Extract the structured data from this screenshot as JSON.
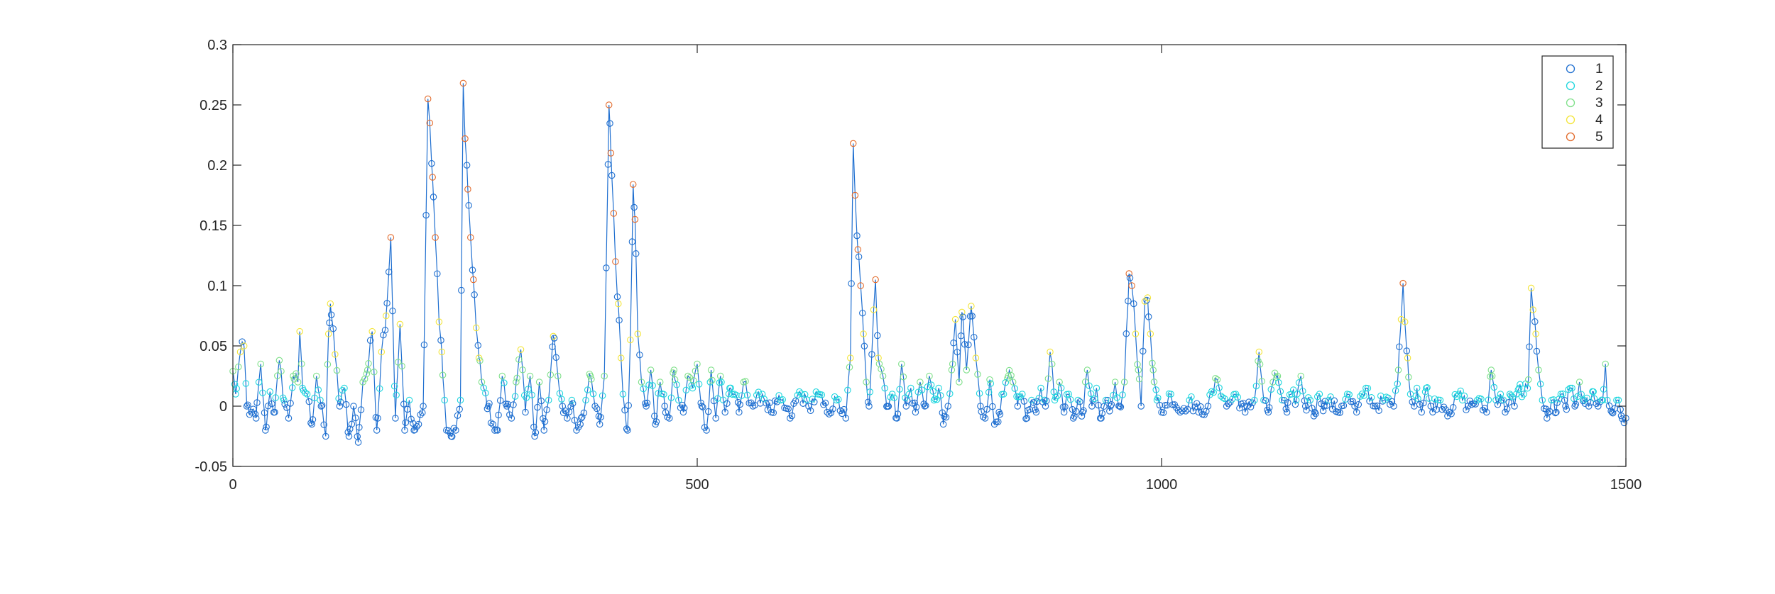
{
  "chart_data": {
    "type": "scatter",
    "title": "",
    "xlabel": "",
    "ylabel": "",
    "xlim": [
      0,
      1500
    ],
    "ylim": [
      -0.05,
      0.3
    ],
    "x_ticks": [
      0,
      500,
      1000,
      1500
    ],
    "x_tick_labels": [
      "0",
      "500",
      "1000",
      "1500"
    ],
    "y_ticks": [
      -0.05,
      0,
      0.05,
      0.1,
      0.15,
      0.2,
      0.25,
      0.3
    ],
    "y_tick_labels": [
      "-0.05",
      "0",
      "0.05",
      "0.1",
      "0.15",
      "0.2",
      "0.25",
      "0.3"
    ],
    "grid": false,
    "legend_position": "top-right",
    "line_color": "#1f6fd0",
    "series": [
      {
        "name": "1",
        "color": "#1f6fd0"
      },
      {
        "name": "2",
        "color": "#1fd6de"
      },
      {
        "name": "3",
        "color": "#7fe08a"
      },
      {
        "name": "4",
        "color": "#f3e53a"
      },
      {
        "name": "5",
        "color": "#e26a2b"
      }
    ],
    "anchor_points": [
      [
        0,
        0.029
      ],
      [
        3,
        0.01
      ],
      [
        8,
        0.045
      ],
      [
        12,
        0.05
      ],
      [
        15,
        0.0
      ],
      [
        20,
        -0.005
      ],
      [
        25,
        -0.01
      ],
      [
        30,
        0.035
      ],
      [
        35,
        -0.02
      ],
      [
        40,
        0.012
      ],
      [
        45,
        -0.005
      ],
      [
        50,
        0.038
      ],
      [
        55,
        0.005
      ],
      [
        60,
        -0.01
      ],
      [
        65,
        0.025
      ],
      [
        70,
        0.02
      ],
      [
        72,
        0.062
      ],
      [
        75,
        0.015
      ],
      [
        80,
        0.01
      ],
      [
        85,
        -0.015
      ],
      [
        90,
        0.025
      ],
      [
        95,
        0.0
      ],
      [
        100,
        -0.025
      ],
      [
        103,
        0.06
      ],
      [
        105,
        0.085
      ],
      [
        110,
        0.043
      ],
      [
        115,
        0.0
      ],
      [
        120,
        0.015
      ],
      [
        125,
        -0.025
      ],
      [
        130,
        0.0
      ],
      [
        135,
        -0.03
      ],
      [
        140,
        0.02
      ],
      [
        145,
        0.03
      ],
      [
        150,
        0.062
      ],
      [
        155,
        -0.02
      ],
      [
        160,
        0.045
      ],
      [
        165,
        0.075
      ],
      [
        170,
        0.14
      ],
      [
        175,
        -0.01
      ],
      [
        180,
        0.068
      ],
      [
        185,
        -0.02
      ],
      [
        190,
        0.005
      ],
      [
        195,
        -0.02
      ],
      [
        200,
        -0.015
      ],
      [
        205,
        0.0
      ],
      [
        210,
        0.255
      ],
      [
        212,
        0.235
      ],
      [
        215,
        0.19
      ],
      [
        218,
        0.14
      ],
      [
        222,
        0.07
      ],
      [
        225,
        0.045
      ],
      [
        228,
        0.005
      ],
      [
        230,
        -0.02
      ],
      [
        235,
        -0.025
      ],
      [
        240,
        -0.02
      ],
      [
        245,
        0.005
      ],
      [
        248,
        0.268
      ],
      [
        250,
        0.222
      ],
      [
        253,
        0.18
      ],
      [
        256,
        0.14
      ],
      [
        259,
        0.105
      ],
      [
        262,
        0.065
      ],
      [
        265,
        0.04
      ],
      [
        268,
        0.02
      ],
      [
        275,
        0.0
      ],
      [
        280,
        -0.015
      ],
      [
        285,
        -0.02
      ],
      [
        290,
        0.025
      ],
      [
        295,
        0.0
      ],
      [
        300,
        -0.01
      ],
      [
        305,
        0.02
      ],
      [
        310,
        0.047
      ],
      [
        315,
        -0.005
      ],
      [
        320,
        0.025
      ],
      [
        325,
        -0.025
      ],
      [
        330,
        0.02
      ],
      [
        335,
        -0.02
      ],
      [
        340,
        0.005
      ],
      [
        345,
        0.058
      ],
      [
        350,
        0.025
      ],
      [
        355,
        0.0
      ],
      [
        360,
        -0.01
      ],
      [
        365,
        0.005
      ],
      [
        370,
        -0.02
      ],
      [
        375,
        -0.01
      ],
      [
        380,
        0.005
      ],
      [
        385,
        0.025
      ],
      [
        390,
        0.0
      ],
      [
        395,
        -0.015
      ],
      [
        400,
        0.025
      ],
      [
        405,
        0.25
      ],
      [
        407,
        0.21
      ],
      [
        410,
        0.16
      ],
      [
        412,
        0.12
      ],
      [
        415,
        0.085
      ],
      [
        418,
        0.04
      ],
      [
        420,
        0.01
      ],
      [
        425,
        -0.02
      ],
      [
        428,
        0.055
      ],
      [
        431,
        0.184
      ],
      [
        433,
        0.155
      ],
      [
        436,
        0.06
      ],
      [
        440,
        0.02
      ],
      [
        445,
        0.0
      ],
      [
        450,
        0.03
      ],
      [
        455,
        -0.015
      ],
      [
        460,
        0.02
      ],
      [
        465,
        0.0
      ],
      [
        470,
        -0.01
      ],
      [
        475,
        0.03
      ],
      [
        480,
        0.005
      ],
      [
        485,
        -0.005
      ],
      [
        490,
        0.025
      ],
      [
        495,
        0.015
      ],
      [
        500,
        0.035
      ],
      [
        505,
        0.0
      ],
      [
        510,
        -0.02
      ],
      [
        515,
        0.03
      ],
      [
        520,
        -0.01
      ],
      [
        525,
        0.025
      ],
      [
        530,
        -0.005
      ],
      [
        535,
        0.015
      ],
      [
        540,
        0.01
      ],
      [
        545,
        -0.005
      ],
      [
        550,
        0.02
      ],
      [
        560,
        0.0
      ],
      [
        570,
        0.01
      ],
      [
        580,
        -0.005
      ],
      [
        590,
        0.005
      ],
      [
        600,
        -0.01
      ],
      [
        610,
        0.012
      ],
      [
        620,
        0.0
      ],
      [
        630,
        0.01
      ],
      [
        640,
        -0.005
      ],
      [
        650,
        0.005
      ],
      [
        660,
        -0.01
      ],
      [
        665,
        0.04
      ],
      [
        668,
        0.218
      ],
      [
        670,
        0.175
      ],
      [
        673,
        0.13
      ],
      [
        676,
        0.1
      ],
      [
        679,
        0.06
      ],
      [
        682,
        0.02
      ],
      [
        685,
        0.0
      ],
      [
        690,
        0.08
      ],
      [
        692,
        0.105
      ],
      [
        695,
        0.04
      ],
      [
        700,
        0.025
      ],
      [
        705,
        0.0
      ],
      [
        710,
        0.01
      ],
      [
        715,
        -0.01
      ],
      [
        720,
        0.035
      ],
      [
        725,
        0.0
      ],
      [
        730,
        0.015
      ],
      [
        735,
        -0.005
      ],
      [
        740,
        0.02
      ],
      [
        745,
        0.0
      ],
      [
        750,
        0.025
      ],
      [
        755,
        0.005
      ],
      [
        760,
        0.015
      ],
      [
        765,
        -0.015
      ],
      [
        770,
        0.0
      ],
      [
        775,
        0.035
      ],
      [
        778,
        0.072
      ],
      [
        782,
        0.02
      ],
      [
        785,
        0.078
      ],
      [
        790,
        0.03
      ],
      [
        795,
        0.083
      ],
      [
        800,
        0.04
      ],
      [
        805,
        0.0
      ],
      [
        810,
        -0.01
      ],
      [
        815,
        0.022
      ],
      [
        820,
        -0.015
      ],
      [
        825,
        -0.005
      ],
      [
        830,
        0.01
      ],
      [
        835,
        0.025
      ],
      [
        840,
        0.02
      ],
      [
        845,
        0.0
      ],
      [
        850,
        0.01
      ],
      [
        855,
        -0.01
      ],
      [
        860,
        0.005
      ],
      [
        865,
        -0.005
      ],
      [
        870,
        0.015
      ],
      [
        875,
        0.0
      ],
      [
        880,
        0.045
      ],
      [
        885,
        0.005
      ],
      [
        890,
        0.02
      ],
      [
        895,
        -0.005
      ],
      [
        900,
        0.01
      ],
      [
        905,
        -0.01
      ],
      [
        910,
        0.005
      ],
      [
        915,
        -0.005
      ],
      [
        920,
        0.03
      ],
      [
        925,
        0.0
      ],
      [
        930,
        0.015
      ],
      [
        935,
        -0.01
      ],
      [
        940,
        0.005
      ],
      [
        945,
        0.0
      ],
      [
        950,
        0.02
      ],
      [
        955,
        0.0
      ],
      [
        960,
        0.02
      ],
      [
        965,
        0.11
      ],
      [
        968,
        0.1
      ],
      [
        972,
        0.06
      ],
      [
        975,
        0.03
      ],
      [
        978,
        0.0
      ],
      [
        982,
        0.087
      ],
      [
        985,
        0.09
      ],
      [
        988,
        0.06
      ],
      [
        991,
        0.03
      ],
      [
        995,
        0.005
      ],
      [
        1000,
        -0.005
      ],
      [
        1010,
        0.01
      ],
      [
        1020,
        -0.005
      ],
      [
        1030,
        0.005
      ],
      [
        1040,
        -0.005
      ],
      [
        1050,
        0.0
      ],
      [
        1060,
        0.022
      ],
      [
        1070,
        0.0
      ],
      [
        1080,
        0.01
      ],
      [
        1090,
        -0.005
      ],
      [
        1100,
        0.005
      ],
      [
        1105,
        0.045
      ],
      [
        1110,
        0.005
      ],
      [
        1115,
        -0.005
      ],
      [
        1120,
        0.02
      ],
      [
        1125,
        0.025
      ],
      [
        1130,
        0.005
      ],
      [
        1135,
        -0.005
      ],
      [
        1140,
        0.01
      ],
      [
        1145,
        0.005
      ],
      [
        1150,
        0.025
      ],
      [
        1155,
        0.0
      ],
      [
        1160,
        0.005
      ],
      [
        1165,
        -0.005
      ],
      [
        1170,
        0.01
      ],
      [
        1175,
        0.0
      ],
      [
        1180,
        0.005
      ],
      [
        1190,
        -0.005
      ],
      [
        1200,
        0.01
      ],
      [
        1210,
        -0.005
      ],
      [
        1220,
        0.015
      ],
      [
        1230,
        0.0
      ],
      [
        1240,
        0.005
      ],
      [
        1250,
        0.0
      ],
      [
        1255,
        0.03
      ],
      [
        1258,
        0.072
      ],
      [
        1260,
        0.102
      ],
      [
        1262,
        0.07
      ],
      [
        1265,
        0.04
      ],
      [
        1268,
        0.01
      ],
      [
        1272,
        0.0
      ],
      [
        1275,
        0.015
      ],
      [
        1280,
        -0.005
      ],
      [
        1285,
        0.015
      ],
      [
        1290,
        0.0
      ],
      [
        1300,
        0.005
      ],
      [
        1310,
        -0.005
      ],
      [
        1320,
        0.01
      ],
      [
        1330,
        0.0
      ],
      [
        1340,
        0.005
      ],
      [
        1350,
        -0.005
      ],
      [
        1355,
        0.03
      ],
      [
        1360,
        0.005
      ],
      [
        1365,
        0.01
      ],
      [
        1370,
        -0.005
      ],
      [
        1375,
        0.01
      ],
      [
        1380,
        0.0
      ],
      [
        1385,
        0.015
      ],
      [
        1390,
        0.01
      ],
      [
        1395,
        0.022
      ],
      [
        1398,
        0.098
      ],
      [
        1400,
        0.08
      ],
      [
        1403,
        0.06
      ],
      [
        1406,
        0.03
      ],
      [
        1410,
        0.005
      ],
      [
        1415,
        -0.01
      ],
      [
        1420,
        0.005
      ],
      [
        1425,
        -0.005
      ],
      [
        1430,
        0.01
      ],
      [
        1435,
        0.0
      ],
      [
        1440,
        0.015
      ],
      [
        1445,
        0.0
      ],
      [
        1450,
        0.02
      ],
      [
        1455,
        0.005
      ],
      [
        1460,
        0.0
      ],
      [
        1465,
        0.012
      ],
      [
        1470,
        0.0
      ],
      [
        1475,
        0.005
      ],
      [
        1478,
        0.035
      ],
      [
        1480,
        0.005
      ],
      [
        1485,
        -0.005
      ],
      [
        1490,
        0.005
      ],
      [
        1495,
        -0.008
      ],
      [
        1500,
        -0.01
      ]
    ],
    "sample_spacing": 2
  }
}
